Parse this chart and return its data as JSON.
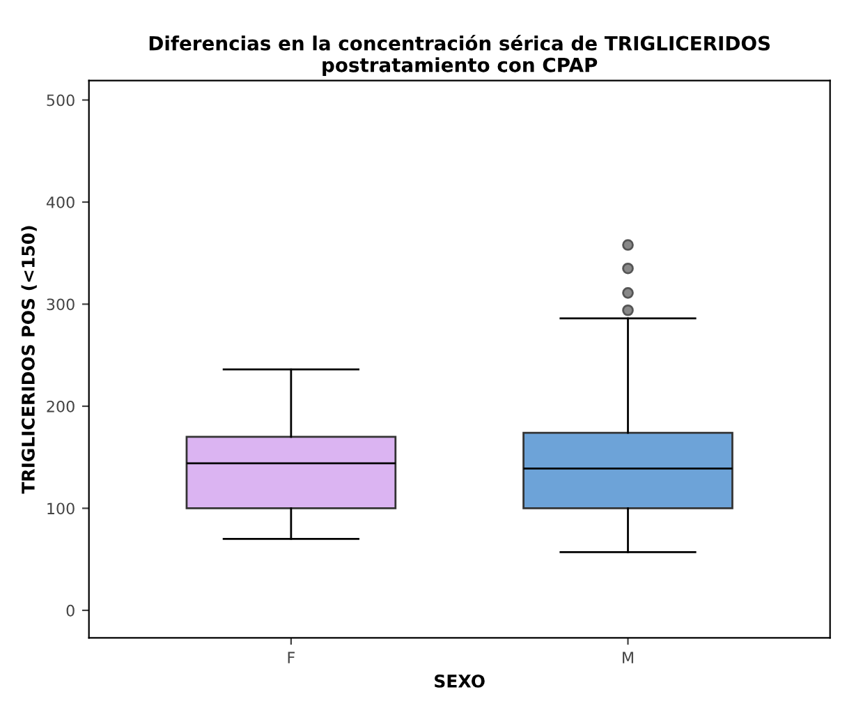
{
  "chart_data": {
    "type": "box",
    "title": "Diferencias en la concentración sérica de TRIGLICERIDOS postratamiento con CPAP",
    "xlabel": "SEXO",
    "ylabel": "TRIGLICERIDOS POS (<150)",
    "categories": [
      "F",
      "M"
    ],
    "colors": [
      "#dbb4f2",
      "#6da3d8"
    ],
    "boxes": [
      {
        "low": 70,
        "q1": 100,
        "median": 144,
        "q3": 170,
        "high": 236
      },
      {
        "low": 57,
        "q1": 100,
        "median": 139,
        "q3": 174,
        "high": 286,
        "outliers": [
          294,
          311,
          335,
          358
        ]
      }
    ],
    "ylim": [
      -27,
      519
    ],
    "yticks": [
      0,
      100,
      200,
      300,
      400,
      500
    ],
    "grid": false
  }
}
